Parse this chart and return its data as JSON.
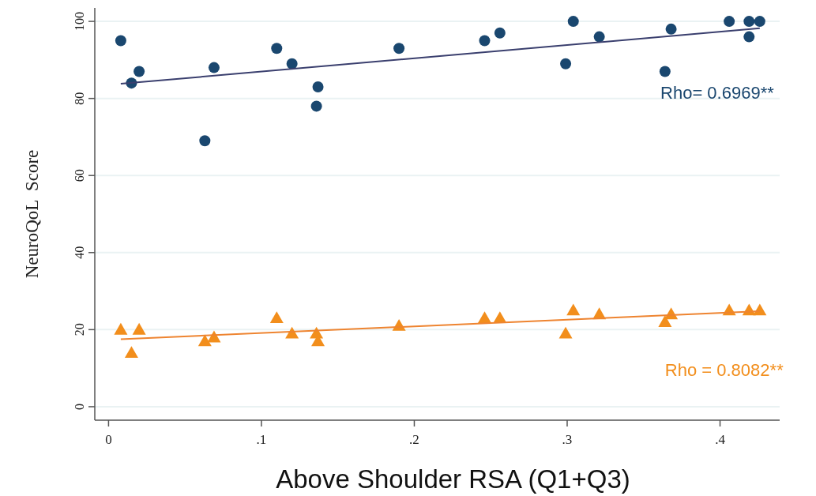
{
  "chart_data": {
    "type": "scatter",
    "xlabel": "Above Shoulder RSA (Q1+Q3)",
    "ylabel": "NeuroQoL  Score",
    "xlim": [
      -0.009,
      0.439
    ],
    "ylim": [
      -3.5,
      103.5
    ],
    "xticks": [
      0,
      {
        "value": 0.1,
        "label": ".1"
      },
      {
        "value": 0.2,
        "label": ".2"
      },
      {
        "value": 0.3,
        "label": ".3"
      },
      {
        "value": 0.4,
        "label": ".4"
      }
    ],
    "yticks": [
      0,
      20,
      40,
      60,
      80,
      100
    ],
    "grid": "y",
    "series": [
      {
        "type": "scatter",
        "marker": "circle",
        "color": "#1a476f",
        "x": [
          0.008,
          0.015,
          0.02,
          0.063,
          0.069,
          0.11,
          0.12,
          0.137,
          0.136,
          0.19,
          0.246,
          0.256,
          0.299,
          0.304,
          0.321,
          0.364,
          0.368,
          0.406,
          0.419,
          0.419,
          0.426
        ],
        "values": [
          95,
          84,
          87,
          69,
          88,
          93,
          89,
          83,
          78,
          93,
          95,
          97,
          89,
          100,
          96,
          87,
          98,
          100,
          100,
          96,
          100
        ]
      },
      {
        "type": "line",
        "color": "#3a3f6e",
        "x": [
          0.008,
          0.426
        ],
        "values": [
          83.8,
          98.2
        ]
      },
      {
        "type": "scatter",
        "marker": "triangle",
        "color": "#f28e1c",
        "x": [
          0.008,
          0.015,
          0.02,
          0.063,
          0.069,
          0.11,
          0.12,
          0.137,
          0.136,
          0.19,
          0.246,
          0.256,
          0.299,
          0.304,
          0.321,
          0.364,
          0.368,
          0.406,
          0.419,
          0.426
        ],
        "values": [
          20,
          14,
          20,
          17,
          18,
          23,
          19,
          17,
          19,
          21,
          23,
          23,
          19,
          25,
          24,
          22,
          24,
          25,
          25,
          25
        ]
      },
      {
        "type": "line",
        "color": "#ee8430",
        "x": [
          0.008,
          0.426
        ],
        "values": [
          17.5,
          24.8
        ]
      }
    ],
    "annotations": [
      "Rho= 0.6969**",
      "Rho = 0.8082**"
    ]
  }
}
